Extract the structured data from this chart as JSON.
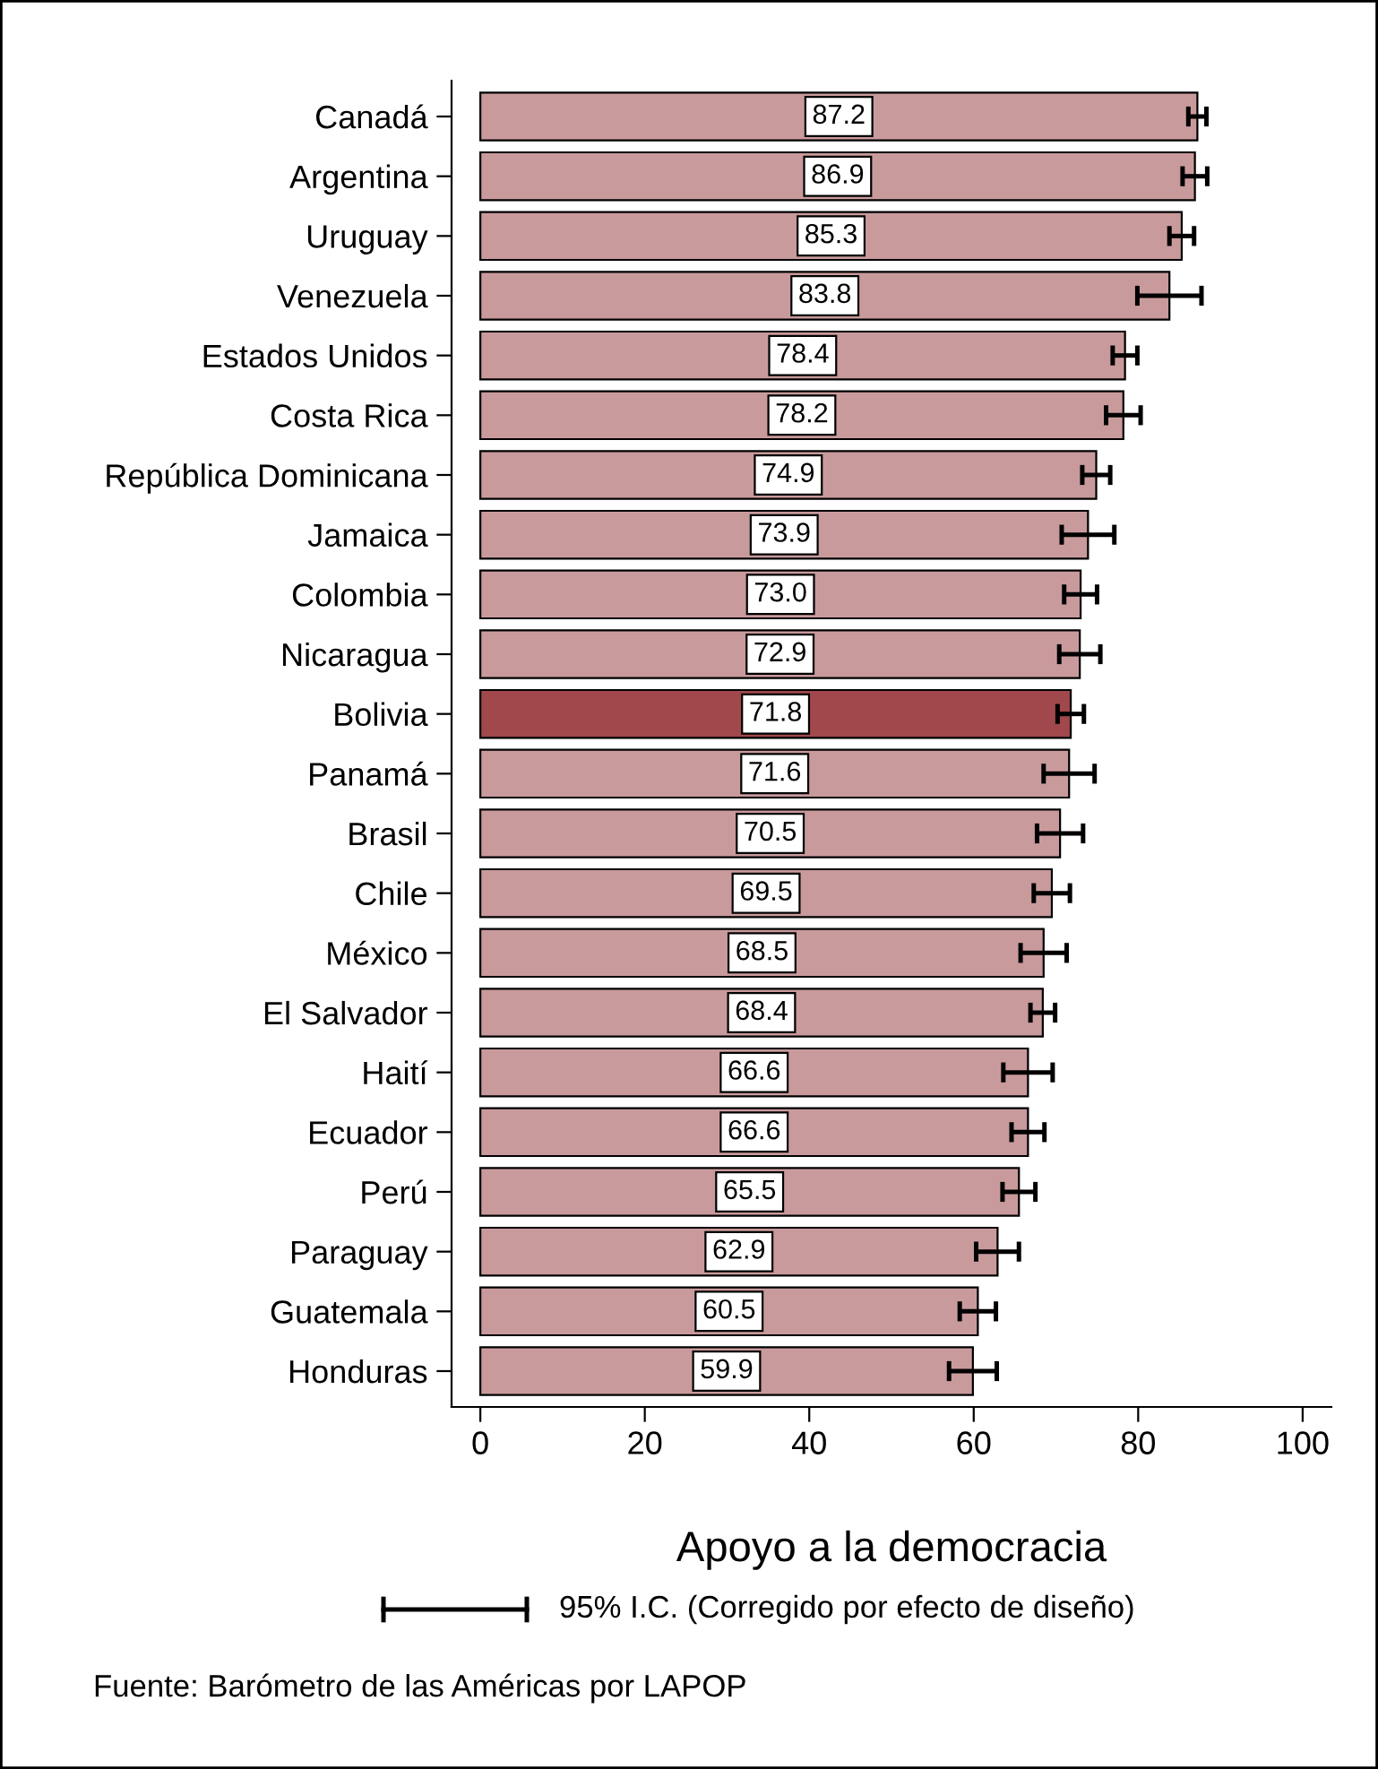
{
  "chart_data": {
    "type": "bar",
    "orientation": "horizontal",
    "xlabel": "Apoyo a la democracia",
    "categories": [
      "Canadá",
      "Argentina",
      "Uruguay",
      "Venezuela",
      "Estados Unidos",
      "Costa Rica",
      "República Dominicana",
      "Jamaica",
      "Colombia",
      "Nicaragua",
      "Bolivia",
      "Panamá",
      "Brasil",
      "Chile",
      "México",
      "El Salvador",
      "Haití",
      "Ecuador",
      "Perú",
      "Paraguay",
      "Guatemala",
      "Honduras"
    ],
    "values": [
      87.2,
      86.9,
      85.3,
      83.8,
      78.4,
      78.2,
      74.9,
      73.9,
      73.0,
      72.9,
      71.8,
      71.6,
      70.5,
      69.5,
      68.5,
      68.4,
      66.6,
      66.6,
      65.5,
      62.9,
      60.5,
      59.9
    ],
    "value_labels": [
      "87.2",
      "86.9",
      "85.3",
      "83.8",
      "78.4",
      "78.2",
      "74.9",
      "73.9",
      "73.0",
      "72.9",
      "71.8",
      "71.6",
      "70.5",
      "69.5",
      "68.5",
      "68.4",
      "66.6",
      "66.6",
      "65.5",
      "62.9",
      "60.5",
      "59.9"
    ],
    "errors": [
      1.1,
      1.5,
      1.5,
      3.9,
      1.5,
      2.1,
      1.7,
      3.2,
      2.0,
      2.5,
      1.6,
      3.1,
      2.8,
      2.2,
      2.8,
      1.5,
      3.0,
      2.0,
      2.0,
      2.6,
      2.2,
      2.9
    ],
    "colors": [
      "#c99a9c",
      "#c99a9c",
      "#c99a9c",
      "#c99a9c",
      "#c99a9c",
      "#c99a9c",
      "#c99a9c",
      "#c99a9c",
      "#c99a9c",
      "#c99a9c",
      "#a0484c",
      "#c99a9c",
      "#c99a9c",
      "#c99a9c",
      "#c99a9c",
      "#c99a9c",
      "#c99a9c",
      "#c99a9c",
      "#c99a9c",
      "#c99a9c",
      "#c99a9c",
      "#c99a9c"
    ],
    "xlim": [
      -3.5,
      103.5
    ],
    "xticks": [
      0,
      20,
      40,
      60,
      80,
      100
    ],
    "grid": false,
    "annotations": [
      "95% I.C. (Corregido por efecto de diseño)",
      "Fuente: Barómetro de las Américas por LAPOP"
    ]
  }
}
